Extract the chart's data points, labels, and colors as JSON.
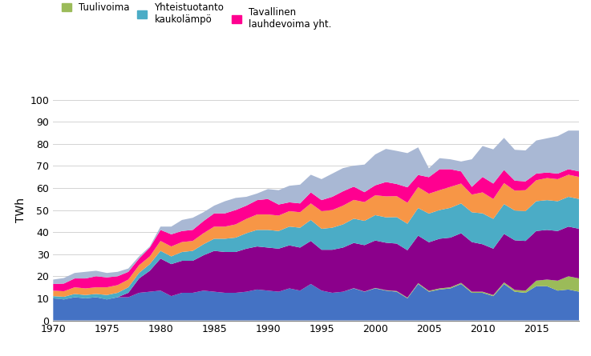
{
  "years": [
    1970,
    1971,
    1972,
    1973,
    1974,
    1975,
    1976,
    1977,
    1978,
    1979,
    1980,
    1981,
    1982,
    1983,
    1984,
    1985,
    1986,
    1987,
    1988,
    1989,
    1990,
    1991,
    1992,
    1993,
    1994,
    1995,
    1996,
    1997,
    1998,
    1999,
    2000,
    2001,
    2002,
    2003,
    2004,
    2005,
    2006,
    2007,
    2008,
    2009,
    2010,
    2011,
    2012,
    2013,
    2014,
    2015,
    2016,
    2017,
    2018,
    2019
  ],
  "vesivoima": [
    10.0,
    9.5,
    10.5,
    10.0,
    10.5,
    9.5,
    10.5,
    10.5,
    12.5,
    13.0,
    13.5,
    11.0,
    12.5,
    12.5,
    13.5,
    13.0,
    12.5,
    12.5,
    13.0,
    14.0,
    13.5,
    13.0,
    14.5,
    13.5,
    16.5,
    13.5,
    12.5,
    13.0,
    14.5,
    13.0,
    14.5,
    13.5,
    13.0,
    10.0,
    16.5,
    13.0,
    14.0,
    14.5,
    16.5,
    12.5,
    12.5,
    11.0,
    16.5,
    13.0,
    12.5,
    15.5,
    15.5,
    13.5,
    14.0,
    13.0
  ],
  "tuulivoima": [
    0.0,
    0.0,
    0.0,
    0.0,
    0.0,
    0.0,
    0.0,
    0.0,
    0.0,
    0.0,
    0.0,
    0.0,
    0.0,
    0.0,
    0.0,
    0.0,
    0.0,
    0.0,
    0.0,
    0.0,
    0.0,
    0.0,
    0.0,
    0.0,
    0.0,
    0.0,
    0.0,
    0.0,
    0.1,
    0.1,
    0.2,
    0.2,
    0.3,
    0.3,
    0.4,
    0.4,
    0.5,
    0.5,
    0.5,
    0.5,
    0.5,
    0.5,
    0.7,
    0.8,
    1.0,
    2.5,
    3.0,
    4.5,
    6.0,
    6.0
  ],
  "ydinvoima": [
    0.0,
    0.0,
    0.0,
    0.0,
    0.0,
    0.0,
    0.0,
    2.0,
    6.5,
    9.5,
    14.5,
    14.5,
    14.5,
    14.5,
    16.0,
    18.5,
    18.5,
    18.5,
    19.5,
    19.5,
    19.5,
    19.5,
    19.5,
    19.5,
    19.5,
    18.5,
    19.5,
    20.0,
    20.5,
    21.0,
    21.5,
    21.5,
    21.5,
    21.5,
    21.5,
    22.0,
    22.5,
    22.5,
    22.5,
    22.5,
    21.5,
    21.0,
    22.0,
    22.5,
    22.5,
    22.5,
    22.5,
    22.5,
    22.5,
    22.5
  ],
  "yhteistuotanto_kaukolampo": [
    1.0,
    1.2,
    1.5,
    1.5,
    1.5,
    2.0,
    2.0,
    2.5,
    2.5,
    3.0,
    3.5,
    3.5,
    4.0,
    4.5,
    5.0,
    5.5,
    6.0,
    6.5,
    7.0,
    7.5,
    8.0,
    8.0,
    8.5,
    9.0,
    9.5,
    9.5,
    10.0,
    10.5,
    11.0,
    11.0,
    11.5,
    11.5,
    12.0,
    12.0,
    12.5,
    13.0,
    13.0,
    13.5,
    13.5,
    13.5,
    14.0,
    13.5,
    13.5,
    13.5,
    13.5,
    13.5,
    13.5,
    13.5,
    13.5,
    13.5
  ],
  "yhteistuotanto_teollisuus": [
    2.5,
    2.5,
    3.0,
    3.0,
    3.0,
    3.5,
    3.5,
    3.5,
    3.5,
    3.5,
    4.5,
    4.5,
    4.5,
    4.5,
    5.0,
    5.5,
    5.5,
    6.0,
    6.5,
    7.0,
    7.0,
    7.0,
    7.0,
    7.0,
    7.5,
    8.0,
    8.0,
    8.5,
    8.5,
    8.5,
    9.0,
    9.5,
    9.5,
    9.5,
    9.5,
    9.0,
    9.0,
    9.5,
    9.0,
    8.0,
    9.5,
    9.0,
    9.5,
    9.0,
    9.5,
    9.5,
    10.0,
    10.0,
    10.0,
    10.0
  ],
  "tavallinen_lauhdevoima": [
    3.0,
    3.5,
    4.0,
    4.5,
    5.0,
    4.5,
    4.0,
    3.5,
    3.0,
    4.0,
    5.0,
    5.5,
    5.0,
    5.0,
    5.5,
    6.0,
    6.0,
    6.5,
    6.0,
    6.5,
    7.0,
    5.0,
    4.0,
    4.0,
    5.0,
    5.0,
    6.0,
    6.5,
    6.0,
    4.5,
    4.5,
    6.5,
    5.5,
    7.0,
    5.5,
    7.5,
    9.5,
    8.0,
    5.5,
    3.5,
    7.0,
    7.0,
    6.0,
    4.5,
    4.0,
    3.0,
    2.5,
    2.5,
    2.5,
    2.5
  ],
  "nettotuonti": [
    2.0,
    2.5,
    2.5,
    3.0,
    2.5,
    2.0,
    2.0,
    1.5,
    1.0,
    0.5,
    1.5,
    3.5,
    5.0,
    5.5,
    4.0,
    3.5,
    5.5,
    5.5,
    4.0,
    3.0,
    4.5,
    6.5,
    7.5,
    8.5,
    8.0,
    9.5,
    10.5,
    10.5,
    9.5,
    12.5,
    14.0,
    15.0,
    15.0,
    15.5,
    12.5,
    4.0,
    5.0,
    4.5,
    4.5,
    12.5,
    14.0,
    15.5,
    14.5,
    14.0,
    14.0,
    15.0,
    15.5,
    17.0,
    17.5,
    18.5
  ],
  "colors": {
    "vesivoima": "#4472C4",
    "tuulivoima": "#9BBB59",
    "ydinvoima": "#8B008B",
    "yhteistuotanto_kaukolampo": "#4BACC6",
    "yhteistuotanto_teollisuus": "#F79646",
    "tavallinen_lauhdevoima": "#FF0090",
    "nettotuonti": "#A9B8D4"
  },
  "ylabel": "TWh",
  "ylim": [
    0,
    100
  ],
  "yticks": [
    0,
    10,
    20,
    30,
    40,
    50,
    60,
    70,
    80,
    90,
    100
  ],
  "xticks": [
    1970,
    1975,
    1980,
    1985,
    1990,
    1995,
    2000,
    2005,
    2010,
    2015
  ]
}
